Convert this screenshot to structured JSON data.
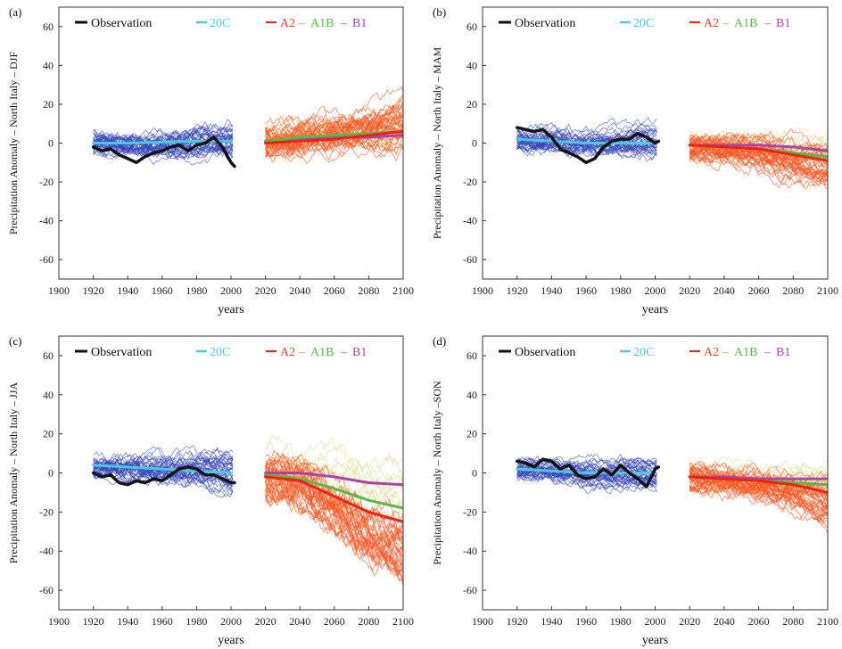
{
  "figure": {
    "xlabel": "years",
    "legend": {
      "observation": "Observation",
      "c20": "20C",
      "a2": "A2",
      "a1b": "A1B",
      "b1": "B1",
      "sep": "–"
    },
    "colors": {
      "observation": "#111111",
      "c20": "#4cc8e0",
      "c20_members": "#3344bb",
      "a2": "#ee2211",
      "a2_members": "#ff5522",
      "a1b": "#55bb44",
      "b1": "#aa44aa",
      "b1_members": "#dddd99"
    }
  },
  "chart_data": [
    {
      "panel": "(a)",
      "type": "line",
      "ylabel": "Precipitation Anomaly – North Italy – DJF",
      "xlim": [
        1900,
        2100
      ],
      "ylim": [
        -70,
        70
      ],
      "xticks": [
        1900,
        1920,
        1940,
        1960,
        1980,
        2000,
        2020,
        2040,
        2060,
        2080,
        2100
      ],
      "yticks": [
        -60,
        -40,
        -20,
        0,
        20,
        40,
        60
      ],
      "members_20c": {
        "x_range": [
          1920,
          2001
        ],
        "count": 38,
        "spread": 8
      },
      "members_scen": {
        "x_range": [
          2020,
          2100
        ],
        "count": 38,
        "spread": 10
      },
      "series": [
        {
          "name": "Observation",
          "x": [
            1920,
            1925,
            1930,
            1935,
            1940,
            1945,
            1950,
            1955,
            1960,
            1965,
            1970,
            1975,
            1980,
            1985,
            1990,
            1995,
            2000,
            2002
          ],
          "y": [
            -2,
            -4,
            -3,
            -6,
            -8,
            -10,
            -7,
            -5,
            -4,
            -2,
            -1,
            -4,
            -1,
            0,
            3,
            -2,
            -10,
            -12
          ]
        },
        {
          "name": "20C",
          "x": [
            1920,
            1940,
            1960,
            1980,
            2000
          ],
          "y": [
            0,
            0,
            0.5,
            1,
            1
          ]
        },
        {
          "name": "A2",
          "x": [
            2020,
            2040,
            2060,
            2080,
            2100
          ],
          "y": [
            0,
            1,
            2,
            4,
            6
          ]
        },
        {
          "name": "A1B",
          "x": [
            2020,
            2040,
            2060,
            2080,
            2100
          ],
          "y": [
            1,
            3,
            4,
            5,
            6
          ]
        },
        {
          "name": "B1",
          "x": [
            2020,
            2040,
            2060,
            2080,
            2100
          ],
          "y": [
            1,
            2,
            3,
            3,
            4
          ]
        }
      ]
    },
    {
      "panel": "(b)",
      "type": "line",
      "ylabel": "Precipitation Anomaly – North Italy – MAM",
      "xlim": [
        1900,
        2100
      ],
      "ylim": [
        -70,
        70
      ],
      "xticks": [
        1900,
        1920,
        1940,
        1960,
        1980,
        2000,
        2020,
        2040,
        2060,
        2080,
        2100
      ],
      "yticks": [
        -60,
        -40,
        -20,
        0,
        20,
        40,
        60
      ],
      "members_20c": {
        "x_range": [
          1920,
          2001
        ],
        "count": 38,
        "spread": 7
      },
      "members_scen": {
        "x_range": [
          2020,
          2100
        ],
        "count": 38,
        "spread": 9
      },
      "series": [
        {
          "name": "Observation",
          "x": [
            1920,
            1925,
            1930,
            1935,
            1940,
            1945,
            1950,
            1955,
            1960,
            1965,
            1970,
            1975,
            1980,
            1985,
            1990,
            1995,
            2000,
            2002
          ],
          "y": [
            8,
            7,
            6,
            7,
            3,
            -3,
            -5,
            -7,
            -10,
            -8,
            -2,
            1,
            2,
            2,
            5,
            3,
            0,
            1
          ]
        },
        {
          "name": "20C",
          "x": [
            1920,
            1940,
            1960,
            1980,
            2000
          ],
          "y": [
            2,
            1,
            0,
            0,
            0
          ]
        },
        {
          "name": "A2",
          "x": [
            2020,
            2040,
            2060,
            2080,
            2100
          ],
          "y": [
            -1,
            -2,
            -3,
            -6,
            -9
          ]
        },
        {
          "name": "A1B",
          "x": [
            2020,
            2040,
            2060,
            2080,
            2100
          ],
          "y": [
            -1,
            -2,
            -3,
            -5,
            -7
          ]
        },
        {
          "name": "B1",
          "x": [
            2020,
            2040,
            2060,
            2080,
            2100
          ],
          "y": [
            -1,
            -1,
            -1,
            -2,
            -4
          ]
        }
      ]
    },
    {
      "panel": "(c)",
      "type": "line",
      "ylabel": "Precipitation Anomaly – North Italy – JJA",
      "xlim": [
        1900,
        2100
      ],
      "ylim": [
        -70,
        70
      ],
      "xticks": [
        1900,
        1920,
        1940,
        1960,
        1980,
        2000,
        2020,
        2040,
        2060,
        2080,
        2100
      ],
      "yticks": [
        -60,
        -40,
        -20,
        0,
        20,
        40,
        60
      ],
      "members_20c": {
        "x_range": [
          1920,
          2001
        ],
        "count": 38,
        "spread": 8
      },
      "members_scen": {
        "x_range": [
          2020,
          2100
        ],
        "count": 38,
        "spread": 14
      },
      "series": [
        {
          "name": "Observation",
          "x": [
            1920,
            1925,
            1930,
            1935,
            1940,
            1945,
            1950,
            1955,
            1960,
            1965,
            1970,
            1975,
            1980,
            1985,
            1990,
            1995,
            2000,
            2002
          ],
          "y": [
            0,
            -2,
            -1,
            -5,
            -6,
            -4,
            -5,
            -3,
            -4,
            -1,
            2,
            3,
            2,
            -1,
            -1,
            -3,
            -5,
            -5
          ]
        },
        {
          "name": "20C",
          "x": [
            1920,
            1940,
            1960,
            1980,
            2000
          ],
          "y": [
            4,
            3,
            2,
            1,
            0
          ]
        },
        {
          "name": "A2",
          "x": [
            2020,
            2040,
            2060,
            2080,
            2100
          ],
          "y": [
            -2,
            -4,
            -12,
            -20,
            -25
          ]
        },
        {
          "name": "A1B",
          "x": [
            2020,
            2040,
            2060,
            2080,
            2100
          ],
          "y": [
            -1,
            -3,
            -8,
            -14,
            -18
          ]
        },
        {
          "name": "B1",
          "x": [
            2020,
            2040,
            2060,
            2080,
            2100
          ],
          "y": [
            0,
            0,
            -2,
            -5,
            -6
          ]
        }
      ]
    },
    {
      "panel": "(d)",
      "type": "line",
      "ylabel": "Precipitation Anomaly – North Italy –SON",
      "xlim": [
        1900,
        2100
      ],
      "ylim": [
        -70,
        70
      ],
      "xticks": [
        1900,
        1920,
        1940,
        1960,
        1980,
        2000,
        2020,
        2040,
        2060,
        2080,
        2100
      ],
      "yticks": [
        -60,
        -40,
        -20,
        0,
        20,
        40,
        60
      ],
      "members_20c": {
        "x_range": [
          1920,
          2001
        ],
        "count": 38,
        "spread": 7
      },
      "members_scen": {
        "x_range": [
          2020,
          2100
        ],
        "count": 38,
        "spread": 9
      },
      "series": [
        {
          "name": "Observation",
          "x": [
            1920,
            1925,
            1930,
            1935,
            1940,
            1945,
            1950,
            1955,
            1960,
            1965,
            1970,
            1975,
            1980,
            1985,
            1990,
            1995,
            2000,
            2002
          ],
          "y": [
            6,
            5,
            3,
            7,
            6,
            2,
            4,
            -1,
            -3,
            -2,
            2,
            -1,
            4,
            0,
            -3,
            -7,
            2,
            3
          ]
        },
        {
          "name": "20C",
          "x": [
            1920,
            1940,
            1960,
            1980,
            2000
          ],
          "y": [
            2,
            1,
            0,
            0,
            0
          ]
        },
        {
          "name": "A2",
          "x": [
            2020,
            2040,
            2060,
            2080,
            2100
          ],
          "y": [
            -2,
            -3,
            -4,
            -6,
            -10
          ]
        },
        {
          "name": "A1B",
          "x": [
            2020,
            2040,
            2060,
            2080,
            2100
          ],
          "y": [
            -2,
            -3,
            -4,
            -5,
            -6
          ]
        },
        {
          "name": "B1",
          "x": [
            2020,
            2040,
            2060,
            2080,
            2100
          ],
          "y": [
            -2,
            -2,
            -3,
            -3,
            -3
          ]
        }
      ]
    }
  ]
}
